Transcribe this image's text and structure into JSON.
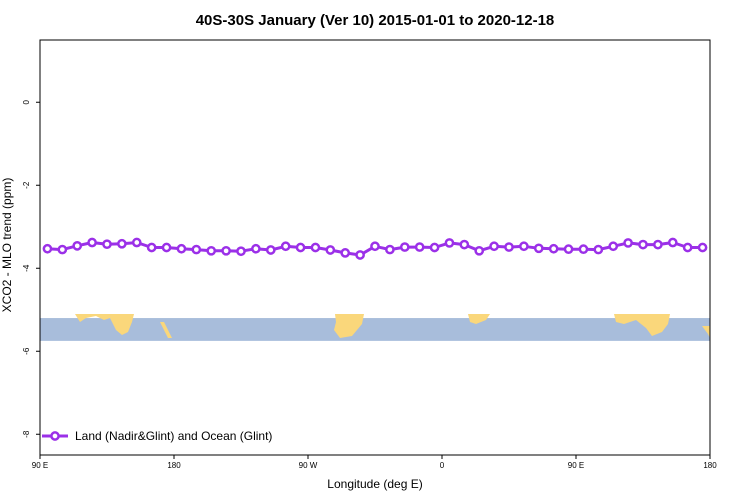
{
  "chart_data": {
    "type": "line",
    "title": "40S-30S January (Ver 10)   2015-01-01 to 2020-12-18",
    "xlabel": "Longitude (deg E)",
    "ylabel": "XCO2 - MLO trend (ppm)",
    "x_ticks": [
      {
        "value": 90,
        "label": "90 E"
      },
      {
        "value": 180,
        "label": "180"
      },
      {
        "value": 270,
        "label": "90 W"
      },
      {
        "value": 360,
        "label": "0"
      },
      {
        "value": 450,
        "label": "90 E"
      },
      {
        "value": 540,
        "label": "180"
      }
    ],
    "y_ticks": [
      {
        "value": 0,
        "label": "0"
      },
      {
        "value": -2,
        "label": "-2"
      },
      {
        "value": -4,
        "label": "-4"
      },
      {
        "value": -6,
        "label": "-6"
      },
      {
        "value": -8,
        "label": "-8"
      }
    ],
    "xlim": [
      90,
      540
    ],
    "ylim": [
      -8.5,
      1.5
    ],
    "grid": false,
    "legend": "bottom-left",
    "series": [
      {
        "name": "Land (Nadir&Glint) and Ocean (Glint)",
        "color": "#9b30e8",
        "x": [
          95,
          105,
          115,
          125,
          135,
          145,
          155,
          165,
          175,
          185,
          195,
          205,
          215,
          225,
          235,
          245,
          255,
          265,
          275,
          285,
          295,
          305,
          315,
          325,
          335,
          345,
          355,
          365,
          375,
          385,
          395,
          405,
          415,
          425,
          435,
          445,
          455,
          465,
          475,
          485,
          495,
          505,
          515,
          525,
          535
        ],
        "y": [
          -3.53,
          -3.55,
          -3.46,
          -3.38,
          -3.42,
          -3.41,
          -3.38,
          -3.5,
          -3.5,
          -3.53,
          -3.55,
          -3.58,
          -3.58,
          -3.59,
          -3.53,
          -3.56,
          -3.47,
          -3.5,
          -3.5,
          -3.56,
          -3.63,
          -3.68,
          -3.47,
          -3.55,
          -3.49,
          -3.49,
          -3.5,
          -3.39,
          -3.43,
          -3.58,
          -3.47,
          -3.49,
          -3.47,
          -3.52,
          -3.53,
          -3.54,
          -3.54,
          -3.55,
          -3.47,
          -3.39,
          -3.43,
          -3.43,
          -3.38,
          -3.5,
          -3.5
        ]
      }
    ],
    "map_band": {
      "y_top": -5.2,
      "y_bottom": -5.75,
      "ocean_color": "#a8bddb",
      "land_color": "#fad77b"
    }
  }
}
